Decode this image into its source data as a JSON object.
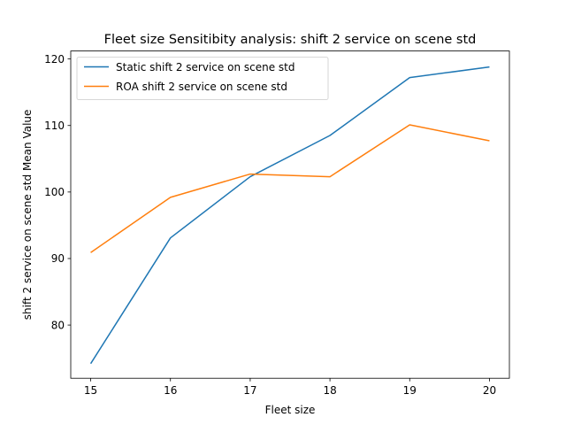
{
  "chart_data": {
    "type": "line",
    "title": "Fleet size Sensitibity analysis: shift 2 service on scene std",
    "xlabel": "Fleet size",
    "ylabel": "shift 2 service on scene std Mean Value",
    "x": [
      15,
      16,
      17,
      18,
      19,
      20
    ],
    "xlim": [
      14.75,
      20.25
    ],
    "ylim": [
      72.0,
      121.2
    ],
    "xticks": [
      15,
      16,
      17,
      18,
      19,
      20
    ],
    "yticks": [
      80,
      90,
      100,
      110,
      120
    ],
    "grid": false,
    "legend_position": "upper-left",
    "series": [
      {
        "name": "Static shift 2 service on scene std",
        "color": "#1f77b4",
        "values": [
          74.2,
          93.1,
          102.3,
          108.5,
          117.2,
          118.8
        ]
      },
      {
        "name": "ROA shift 2 service on scene std",
        "color": "#ff7f0e",
        "values": [
          90.9,
          99.2,
          102.7,
          102.3,
          110.1,
          107.7
        ]
      }
    ]
  }
}
